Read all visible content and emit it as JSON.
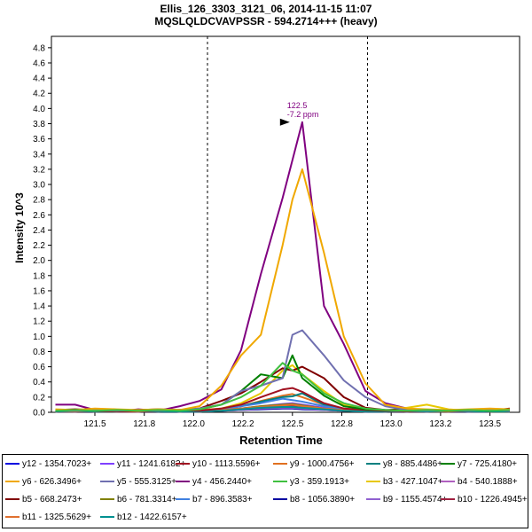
{
  "chart_data": {
    "type": "line",
    "title": "Ellis_126_3303_3121_06, 2014-11-15 11:07",
    "subtitle": "MQSLQLDCVAVPSSR - 594.2714+++ (heavy)",
    "xlabel": "Retention Time",
    "ylabel": "Intensity 10^3",
    "xlim": [
      121.28,
      123.65
    ],
    "ylim": [
      0,
      4.95
    ],
    "x_ticks": [
      "121.5",
      "121.8",
      "122.0",
      "122.2",
      "122.5",
      "122.8",
      "123.0",
      "123.2",
      "123.5"
    ],
    "x_tick_values": [
      121.5,
      121.75,
      122.0,
      122.25,
      122.5,
      122.75,
      123.0,
      123.25,
      123.5
    ],
    "y_ticks": [
      "0.0",
      "0.2",
      "0.4",
      "0.6",
      "0.8",
      "1.0",
      "1.2",
      "1.4",
      "1.6",
      "1.8",
      "2.0",
      "2.2",
      "2.4",
      "2.6",
      "2.8",
      "3.0",
      "3.2",
      "3.4",
      "3.6",
      "3.8",
      "4.0",
      "4.2",
      "4.4",
      "4.6",
      "4.8"
    ],
    "y_tick_values": [
      0,
      0.2,
      0.4,
      0.6,
      0.8,
      1.0,
      1.2,
      1.4,
      1.6,
      1.8,
      2.0,
      2.2,
      2.4,
      2.6,
      2.8,
      3.0,
      3.2,
      3.4,
      3.6,
      3.8,
      4.0,
      4.2,
      4.4,
      4.6,
      4.8
    ],
    "integration_bounds": [
      122.07,
      122.88
    ],
    "peak_annotation": {
      "x": 122.5,
      "y": 3.82,
      "label_time": "122.5",
      "label_ppm": "-7.2 ppm"
    },
    "x": [
      121.3,
      121.4,
      121.5,
      121.61,
      121.72,
      121.82,
      121.93,
      122.03,
      122.14,
      122.24,
      122.34,
      122.45,
      122.5,
      122.55,
      122.66,
      122.76,
      122.87,
      122.97,
      123.08,
      123.18,
      123.29,
      123.39,
      123.5,
      123.6
    ],
    "series": [
      {
        "name": "y12 - 1354.7023+",
        "color": "#0000e0",
        "values": [
          0.02,
          0.01,
          0.02,
          0.01,
          0.02,
          0.01,
          0.02,
          0.02,
          0.03,
          0.04,
          0.06,
          0.08,
          0.09,
          0.07,
          0.05,
          0.03,
          0.02,
          0.02,
          0.01,
          0.02,
          0.01,
          0.02,
          0.01,
          0.02
        ]
      },
      {
        "name": "y11 - 1241.6182+",
        "color": "#8040ff",
        "values": [
          0.01,
          0.02,
          0.01,
          0.02,
          0.01,
          0.02,
          0.01,
          0.02,
          0.03,
          0.05,
          0.08,
          0.11,
          0.12,
          0.1,
          0.06,
          0.04,
          0.02,
          0.01,
          0.02,
          0.01,
          0.02,
          0.01,
          0.02,
          0.01
        ]
      },
      {
        "name": "y10 - 1113.5596+",
        "color": "#a01020",
        "values": [
          0.02,
          0.03,
          0.02,
          0.01,
          0.02,
          0.02,
          0.03,
          0.02,
          0.05,
          0.1,
          0.2,
          0.3,
          0.32,
          0.27,
          0.12,
          0.05,
          0.03,
          0.02,
          0.02,
          0.03,
          0.02,
          0.02,
          0.03,
          0.02
        ]
      },
      {
        "name": "y9 - 1000.4756+",
        "color": "#e07020",
        "values": [
          0.03,
          0.02,
          0.03,
          0.02,
          0.02,
          0.03,
          0.02,
          0.03,
          0.05,
          0.08,
          0.15,
          0.22,
          0.24,
          0.2,
          0.1,
          0.05,
          0.03,
          0.02,
          0.03,
          0.02,
          0.03,
          0.02,
          0.02,
          0.03
        ]
      },
      {
        "name": "y8 - 885.4486+",
        "color": "#008080",
        "values": [
          0.02,
          0.02,
          0.01,
          0.02,
          0.02,
          0.01,
          0.02,
          0.02,
          0.04,
          0.08,
          0.14,
          0.2,
          0.21,
          0.25,
          0.1,
          0.04,
          0.02,
          0.02,
          0.01,
          0.02,
          0.02,
          0.01,
          0.02,
          0.02
        ]
      },
      {
        "name": "y7 - 725.4180+",
        "color": "#008000",
        "values": [
          0.03,
          0.02,
          0.03,
          0.02,
          0.03,
          0.02,
          0.03,
          0.04,
          0.1,
          0.28,
          0.5,
          0.45,
          0.75,
          0.45,
          0.22,
          0.08,
          0.04,
          0.03,
          0.02,
          0.03,
          0.02,
          0.03,
          0.02,
          0.03
        ]
      },
      {
        "name": "y6 - 626.3496+",
        "color": "#f0a800",
        "values": [
          0.04,
          0.03,
          0.05,
          0.04,
          0.03,
          0.04,
          0.03,
          0.08,
          0.35,
          0.75,
          1.02,
          2.2,
          2.8,
          3.2,
          2.1,
          1.0,
          0.38,
          0.1,
          0.05,
          0.04,
          0.03,
          0.04,
          0.05,
          0.04
        ]
      },
      {
        "name": "y5 - 555.3125+",
        "color": "#7070b0",
        "values": [
          0.03,
          0.02,
          0.03,
          0.02,
          0.03,
          0.02,
          0.03,
          0.05,
          0.1,
          0.28,
          0.35,
          0.45,
          1.02,
          1.08,
          0.75,
          0.42,
          0.2,
          0.08,
          0.03,
          0.02,
          0.03,
          0.02,
          0.03,
          0.02
        ]
      },
      {
        "name": "y4 - 456.2440+",
        "color": "#800080",
        "values": [
          0.1,
          0.1,
          0.03,
          0.01,
          0.04,
          0.02,
          0.08,
          0.15,
          0.3,
          0.82,
          1.82,
          2.82,
          3.32,
          3.82,
          1.4,
          0.9,
          0.28,
          0.12,
          0.05,
          0.03,
          0.02,
          0.03,
          0.02,
          0.03
        ]
      },
      {
        "name": "y3 - 359.1913+",
        "color": "#40c040",
        "values": [
          0.02,
          0.03,
          0.02,
          0.03,
          0.02,
          0.03,
          0.02,
          0.04,
          0.1,
          0.2,
          0.35,
          0.65,
          0.55,
          0.5,
          0.25,
          0.12,
          0.05,
          0.03,
          0.02,
          0.03,
          0.02,
          0.03,
          0.02,
          0.03
        ]
      },
      {
        "name": "b3 - 427.1047+",
        "color": "#e8c800",
        "values": [
          0.01,
          0.02,
          0.01,
          0.02,
          0.01,
          0.02,
          0.01,
          0.02,
          0.05,
          0.12,
          0.25,
          0.55,
          0.62,
          0.5,
          0.28,
          0.1,
          0.04,
          0.02,
          0.06,
          0.1,
          0.04,
          0.02,
          0.01,
          0.02
        ]
      },
      {
        "name": "b4 - 540.1888+",
        "color": "#b060c0",
        "values": [
          0.01,
          0.01,
          0.02,
          0.01,
          0.01,
          0.02,
          0.01,
          0.01,
          0.02,
          0.04,
          0.06,
          0.07,
          0.07,
          0.06,
          0.04,
          0.02,
          0.01,
          0.02,
          0.01,
          0.01,
          0.02,
          0.01,
          0.01,
          0.02
        ]
      },
      {
        "name": "b5 - 668.2473+",
        "color": "#800000",
        "values": [
          0.03,
          0.04,
          0.03,
          0.02,
          0.03,
          0.04,
          0.03,
          0.05,
          0.15,
          0.25,
          0.4,
          0.58,
          0.55,
          0.6,
          0.45,
          0.2,
          0.06,
          0.03,
          0.04,
          0.03,
          0.02,
          0.03,
          0.02,
          0.05
        ]
      },
      {
        "name": "b6 - 781.3314+",
        "color": "#808000",
        "values": [
          0.01,
          0.02,
          0.01,
          0.01,
          0.02,
          0.01,
          0.02,
          0.01,
          0.03,
          0.05,
          0.08,
          0.1,
          0.11,
          0.09,
          0.05,
          0.03,
          0.02,
          0.01,
          0.02,
          0.01,
          0.01,
          0.02,
          0.01,
          0.01
        ]
      },
      {
        "name": "b7 - 896.3583+",
        "color": "#4080e0",
        "values": [
          0.02,
          0.01,
          0.02,
          0.02,
          0.01,
          0.02,
          0.02,
          0.02,
          0.04,
          0.08,
          0.12,
          0.18,
          0.16,
          0.14,
          0.08,
          0.04,
          0.02,
          0.02,
          0.01,
          0.02,
          0.02,
          0.01,
          0.02,
          0.02
        ]
      },
      {
        "name": "b8 - 1056.3890+",
        "color": "#0000a0",
        "values": [
          0.01,
          0.01,
          0.01,
          0.02,
          0.01,
          0.01,
          0.01,
          0.02,
          0.02,
          0.03,
          0.04,
          0.05,
          0.05,
          0.04,
          0.03,
          0.02,
          0.01,
          0.01,
          0.02,
          0.01,
          0.01,
          0.01,
          0.02,
          0.01
        ]
      },
      {
        "name": "b9 - 1155.4574+",
        "color": "#9060d0",
        "values": [
          0.01,
          0.02,
          0.01,
          0.01,
          0.01,
          0.02,
          0.01,
          0.01,
          0.02,
          0.03,
          0.05,
          0.06,
          0.06,
          0.05,
          0.03,
          0.02,
          0.01,
          0.01,
          0.01,
          0.02,
          0.01,
          0.01,
          0.01,
          0.02
        ]
      },
      {
        "name": "b10 - 1226.4945+",
        "color": "#a02040",
        "values": [
          0.02,
          0.01,
          0.01,
          0.02,
          0.01,
          0.01,
          0.02,
          0.01,
          0.02,
          0.04,
          0.06,
          0.08,
          0.08,
          0.07,
          0.04,
          0.02,
          0.01,
          0.02,
          0.01,
          0.01,
          0.02,
          0.01,
          0.01,
          0.02
        ]
      },
      {
        "name": "b11 - 1325.5629+",
        "color": "#e07030",
        "values": [
          0.01,
          0.01,
          0.02,
          0.01,
          0.01,
          0.02,
          0.01,
          0.02,
          0.03,
          0.05,
          0.07,
          0.09,
          0.1,
          0.08,
          0.05,
          0.03,
          0.02,
          0.01,
          0.02,
          0.01,
          0.01,
          0.02,
          0.01,
          0.01
        ]
      },
      {
        "name": "b12 - 1422.6157+",
        "color": "#009090",
        "values": [
          0.01,
          0.02,
          0.01,
          0.01,
          0.02,
          0.01,
          0.01,
          0.01,
          0.02,
          0.04,
          0.06,
          0.07,
          0.07,
          0.06,
          0.04,
          0.02,
          0.01,
          0.01,
          0.02,
          0.01,
          0.02,
          0.01,
          0.01,
          0.01
        ]
      }
    ]
  }
}
